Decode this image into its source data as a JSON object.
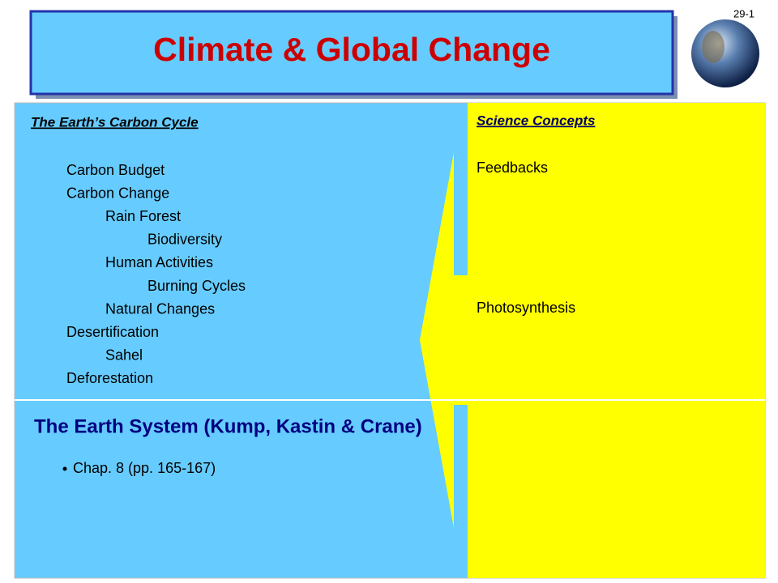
{
  "slide_number": "29-1",
  "title": "Climate & Global Change",
  "left_panel": {
    "heading": "The Earth’s Carbon Cycle",
    "outline": [
      {
        "text": "Carbon Budget"
      },
      {
        "text": "Carbon Change",
        "children": [
          {
            "text": "Rain Forest",
            "children": [
              {
                "text": "Biodiversity"
              }
            ]
          },
          {
            "text": "Human Activities",
            "children": [
              {
                "text": "Burning Cycles"
              }
            ]
          },
          {
            "text": "Natural Changes"
          }
        ]
      },
      {
        "text": "Desertification",
        "children": [
          {
            "text": "Sahel"
          }
        ]
      },
      {
        "text": "Deforestation"
      }
    ]
  },
  "right_panel": {
    "heading": "Science Concepts",
    "items": [
      "Feedbacks",
      "Photosynthesis"
    ]
  },
  "reading": {
    "heading": "The Earth System (Kump, Kastin & Crane)",
    "bullets": [
      "Chap. 8 (pp. 165-167)"
    ]
  }
}
